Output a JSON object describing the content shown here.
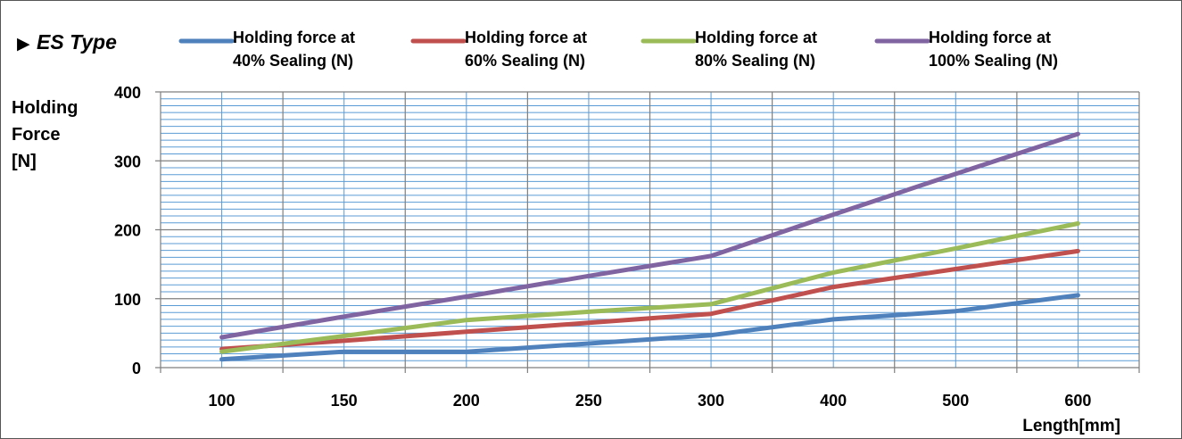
{
  "chart_data": {
    "type": "line",
    "title": "ES Type",
    "title_marker": "▶",
    "xlabel": "Length[mm]",
    "ylabel_lines": [
      "Holding",
      "Force",
      "[N]"
    ],
    "categories": [
      "100",
      "150",
      "200",
      "250",
      "300",
      "400",
      "500",
      "600"
    ],
    "ylim": [
      0,
      400
    ],
    "yticks": [
      "0",
      "100",
      "200",
      "300",
      "400"
    ],
    "grid": true,
    "legend_position": "top",
    "series": [
      {
        "name_line1": "Holding force at",
        "name_line2": "40% Sealing (N)",
        "color": "#4f81bd",
        "values": [
          12,
          23,
          23,
          35,
          47,
          70,
          82,
          105
        ]
      },
      {
        "name_line1": "Holding force at",
        "name_line2": "60% Sealing (N)",
        "color": "#c0504d",
        "values": [
          27,
          39,
          52,
          65,
          78,
          117,
          143,
          169
        ]
      },
      {
        "name_line1": "Holding force at",
        "name_line2": "80% Sealing (N)",
        "color": "#9bbb59",
        "values": [
          23,
          46,
          69,
          81,
          92,
          138,
          173,
          209
        ]
      },
      {
        "name_line1": "Holding force at",
        "name_line2": "100% Sealing (N)",
        "color": "#8064a2",
        "values": [
          44,
          74,
          103,
          133,
          162,
          222,
          281,
          339
        ]
      }
    ]
  }
}
